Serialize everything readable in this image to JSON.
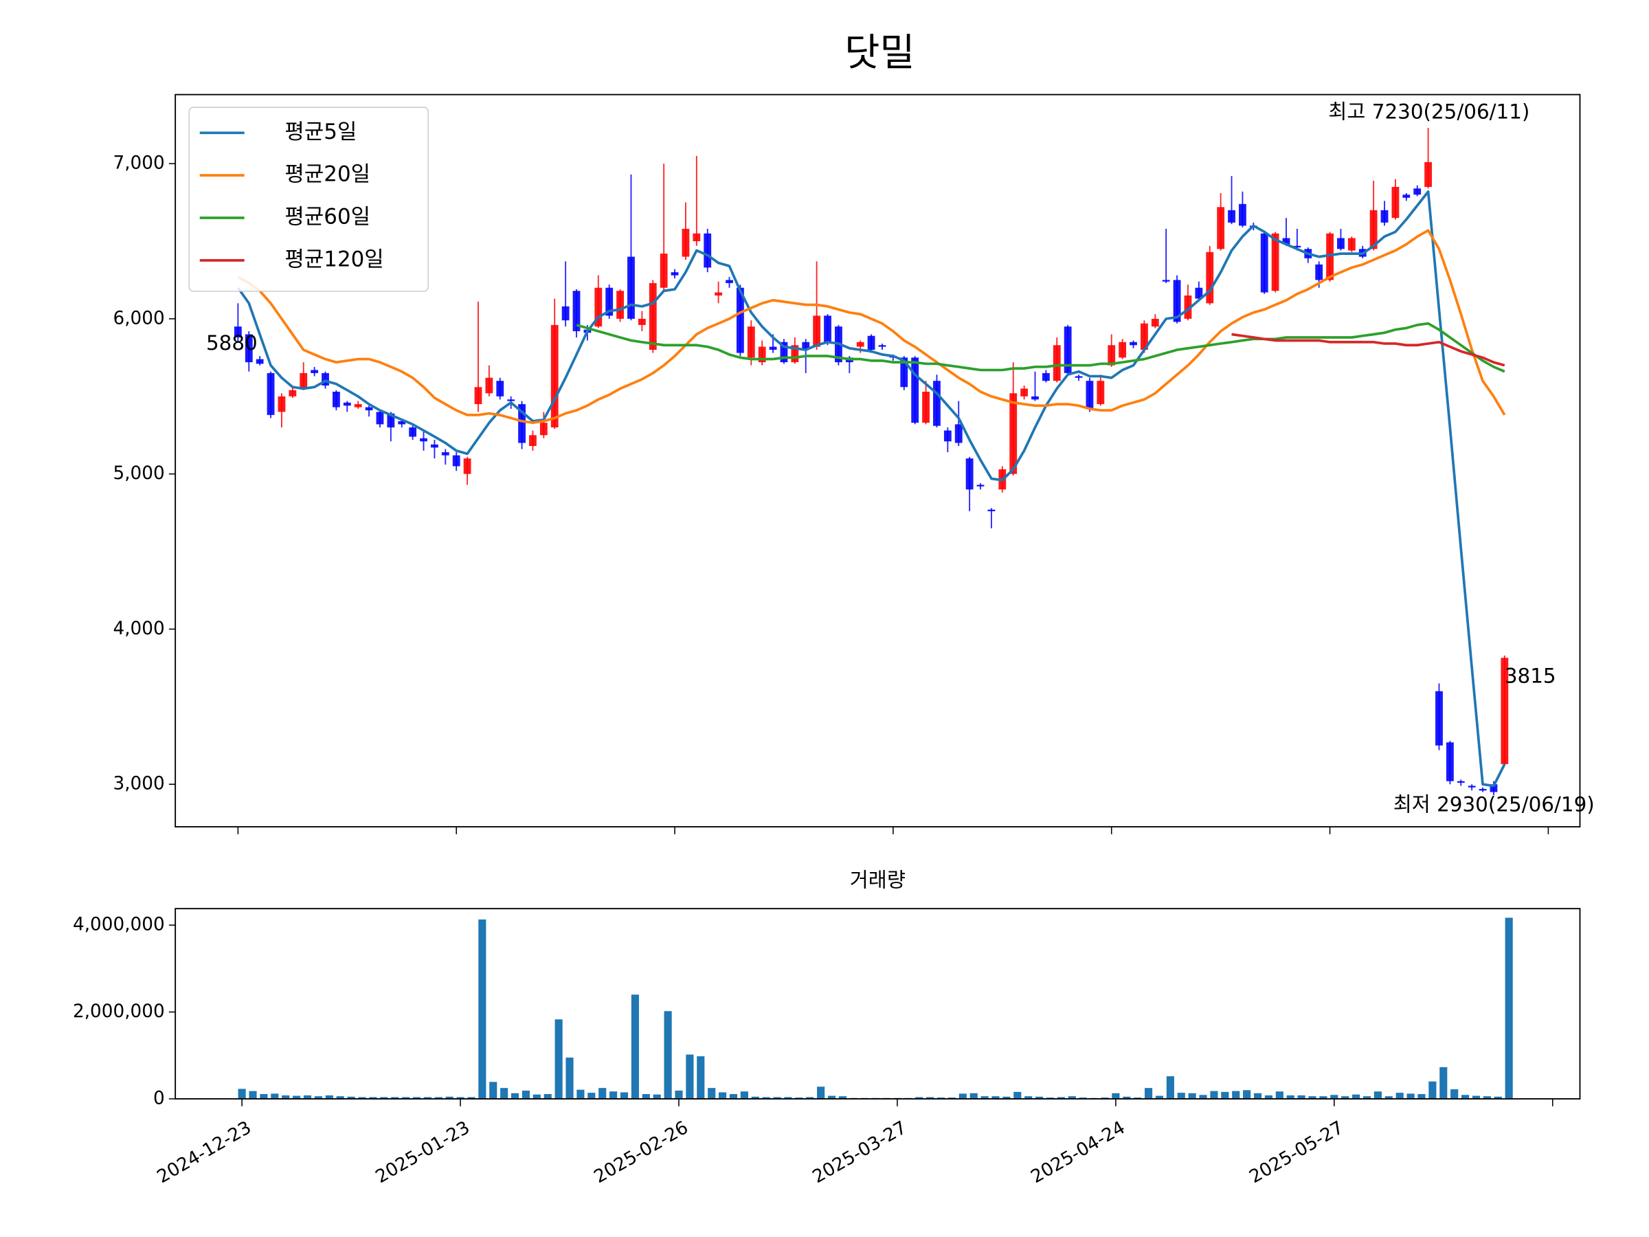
{
  "chart_data": [
    {
      "type": "candlestick",
      "title": "닷밀",
      "legend": "upper left",
      "up_color": "#ff0000",
      "down_color": "#0000ff",
      "xlim": [
        -5.74,
        122.9
      ],
      "xticks": [
        0,
        20,
        40,
        60,
        80,
        100,
        120
      ],
      "ylim": [
        2726,
        7445
      ],
      "yticks": [
        {
          "value": 3000,
          "label": "3,000"
        },
        {
          "value": 4000,
          "label": "4,000"
        },
        {
          "value": 5000,
          "label": "5,000"
        },
        {
          "value": 6000,
          "label": "6,000"
        },
        {
          "value": 7000,
          "label": "7,000"
        }
      ],
      "annotations": [
        {
          "text": "최고 7230(25/06/11)",
          "color": "#ff0000"
        },
        {
          "text": "최저 2930(25/06/19)",
          "color": "#0000ff"
        }
      ],
      "open": [
        5950,
        5900,
        5740,
        5650,
        5400,
        5500,
        5550,
        5670,
        5650,
        5530,
        5460,
        5430,
        5430,
        5400,
        5390,
        5340,
        5300,
        5230,
        5190,
        5140,
        5120,
        5000,
        5450,
        5520,
        5600,
        5480,
        5450,
        5180,
        5250,
        5300,
        6080,
        6180,
        5930,
        5950,
        6200,
        6000,
        6400,
        5960,
        5800,
        6200,
        6300,
        6400,
        6500,
        6550,
        6150,
        6250,
        6200,
        5750,
        5720,
        5820,
        5850,
        5720,
        5850,
        5820,
        6020,
        5950,
        5750,
        5820,
        5890,
        5830,
        5760,
        5750,
        5750,
        5330,
        5600,
        5280,
        5320,
        5100,
        4930,
        4770,
        4900,
        5000,
        5500,
        5500,
        5650,
        5600,
        5950,
        5630,
        5600,
        5450,
        5700,
        5750,
        5850,
        5800,
        5950,
        6250,
        6250,
        6000,
        6200,
        6100,
        6450,
        6700,
        6740,
        6600,
        6550,
        6180,
        6520,
        6470,
        6450,
        6350,
        6250,
        6520,
        6440,
        6450,
        6450,
        6700,
        6650,
        6800,
        6840,
        6850,
        3600,
        3270,
        3020,
        2990,
        2970,
        3000,
        3130
      ],
      "high": [
        6100,
        5920,
        5760,
        5660,
        5520,
        5560,
        5720,
        5690,
        5660,
        5540,
        5470,
        5470,
        5440,
        5410,
        5400,
        5350,
        5310,
        5280,
        5220,
        5160,
        5140,
        5110,
        6110,
        5700,
        5620,
        5500,
        5470,
        5280,
        5400,
        6130,
        6370,
        6190,
        5960,
        6280,
        6220,
        6190,
        6930,
        6050,
        6250,
        7000,
        6320,
        6750,
        7050,
        6580,
        6240,
        6270,
        6220,
        5990,
        5860,
        5900,
        5870,
        5880,
        5870,
        6370,
        6030,
        5960,
        5760,
        5860,
        5900,
        5840,
        5770,
        5760,
        5760,
        5600,
        5640,
        5300,
        5470,
        5110,
        4940,
        4780,
        5050,
        5720,
        5570,
        5660,
        5670,
        5880,
        5960,
        5640,
        5620,
        5640,
        5900,
        5870,
        5860,
        5990,
        6030,
        6580,
        6280,
        6220,
        6240,
        6470,
        6810,
        6920,
        6820,
        6620,
        6560,
        6560,
        6650,
        6580,
        6460,
        6370,
        6560,
        6580,
        6530,
        6470,
        6890,
        6760,
        6900,
        6810,
        6860,
        7230,
        3650,
        3280,
        3030,
        3000,
        2980,
        3020,
        3830
      ],
      "low": [
        5850,
        5660,
        5700,
        5360,
        5300,
        5490,
        5540,
        5630,
        5550,
        5410,
        5400,
        5420,
        5370,
        5300,
        5210,
        5300,
        5220,
        5150,
        5100,
        5060,
        5020,
        4930,
        5400,
        5500,
        5480,
        5420,
        5160,
        5150,
        5230,
        5290,
        5950,
        5880,
        5860,
        5940,
        6000,
        5980,
        5990,
        5920,
        5780,
        6180,
        6260,
        6380,
        6470,
        6300,
        6100,
        6200,
        5760,
        5700,
        5700,
        5780,
        5710,
        5710,
        5650,
        5800,
        5830,
        5700,
        5650,
        5780,
        5780,
        5800,
        5730,
        5540,
        5320,
        5320,
        5300,
        5140,
        5180,
        4760,
        4900,
        4650,
        4880,
        4990,
        5480,
        5470,
        5590,
        5590,
        5640,
        5600,
        5400,
        5440,
        5690,
        5740,
        5810,
        5780,
        5940,
        6230,
        5970,
        5990,
        6120,
        6090,
        6440,
        6610,
        6590,
        6570,
        6160,
        6170,
        6470,
        6440,
        6360,
        6200,
        6240,
        6440,
        6430,
        6390,
        6440,
        6600,
        6640,
        6760,
        6790,
        6840,
        3220,
        3000,
        2990,
        2960,
        2950,
        2930,
        3120
      ],
      "close": [
        5880,
        5720,
        5710,
        5380,
        5500,
        5540,
        5650,
        5650,
        5570,
        5430,
        5440,
        5450,
        5410,
        5320,
        5300,
        5320,
        5240,
        5210,
        5170,
        5120,
        5050,
        5100,
        5560,
        5620,
        5500,
        5470,
        5200,
        5250,
        5330,
        5960,
        5990,
        5920,
        5910,
        6200,
        6020,
        6180,
        6000,
        6000,
        6230,
        6420,
        6280,
        6580,
        6550,
        6330,
        6170,
        6230,
        5780,
        5950,
        5820,
        5800,
        5720,
        5830,
        5800,
        6020,
        5850,
        5720,
        5720,
        5850,
        5800,
        5820,
        5750,
        5560,
        5330,
        5530,
        5310,
        5210,
        5200,
        4900,
        4920,
        4760,
        5030,
        5520,
        5550,
        5480,
        5600,
        5830,
        5650,
        5620,
        5420,
        5600,
        5830,
        5850,
        5830,
        5970,
        6000,
        6240,
        5980,
        6150,
        6130,
        6430,
        6720,
        6620,
        6600,
        6590,
        6170,
        6550,
        6480,
        6460,
        6390,
        6250,
        6550,
        6450,
        6520,
        6400,
        6700,
        6620,
        6850,
        6780,
        6800,
        7010,
        3250,
        3020,
        3010,
        2980,
        2960,
        2950,
        3815
      ],
      "series": [
        {
          "name": "평균5일",
          "color": "#1f77b4",
          "values": [
            6200,
            6100,
            5900,
            5700,
            5620,
            5560,
            5550,
            5560,
            5600,
            5580,
            5540,
            5500,
            5450,
            5410,
            5380,
            5350,
            5320,
            5280,
            5240,
            5200,
            5150,
            5130,
            5230,
            5330,
            5410,
            5460,
            5400,
            5340,
            5350,
            5480,
            5620,
            5770,
            5920,
            6010,
            6050,
            6060,
            6090,
            6080,
            6100,
            6180,
            6190,
            6300,
            6440,
            6410,
            6360,
            6340,
            6180,
            6040,
            5950,
            5880,
            5820,
            5810,
            5800,
            5830,
            5850,
            5840,
            5810,
            5800,
            5790,
            5770,
            5760,
            5730,
            5640,
            5580,
            5520,
            5440,
            5360,
            5220,
            5090,
            4970,
            4960,
            5030,
            5150,
            5300,
            5440,
            5550,
            5640,
            5660,
            5630,
            5630,
            5620,
            5670,
            5700,
            5800,
            5900,
            6000,
            6010,
            6060,
            6120,
            6180,
            6300,
            6440,
            6530,
            6600,
            6560,
            6510,
            6480,
            6450,
            6420,
            6400,
            6410,
            6420,
            6420,
            6420,
            6470,
            6530,
            6560,
            6640,
            6730,
            6820,
            6060,
            5300,
            4520,
            3750,
            3000,
            2990,
            3130
          ]
        },
        {
          "name": "평균20일",
          "color": "#ff7f0e",
          "values": [
            6270,
            6230,
            6180,
            6100,
            6000,
            5900,
            5800,
            5770,
            5740,
            5720,
            5730,
            5740,
            5740,
            5720,
            5690,
            5660,
            5620,
            5560,
            5490,
            5450,
            5410,
            5380,
            5380,
            5390,
            5380,
            5360,
            5340,
            5330,
            5340,
            5360,
            5390,
            5410,
            5440,
            5480,
            5510,
            5550,
            5580,
            5610,
            5650,
            5700,
            5760,
            5830,
            5900,
            5940,
            5970,
            6000,
            6040,
            6070,
            6100,
            6120,
            6110,
            6100,
            6090,
            6090,
            6080,
            6060,
            6040,
            6030,
            6000,
            5970,
            5920,
            5860,
            5820,
            5770,
            5720,
            5670,
            5620,
            5580,
            5530,
            5500,
            5480,
            5460,
            5450,
            5440,
            5440,
            5450,
            5450,
            5440,
            5420,
            5410,
            5410,
            5440,
            5460,
            5480,
            5520,
            5580,
            5640,
            5700,
            5770,
            5850,
            5920,
            5970,
            6010,
            6040,
            6060,
            6090,
            6120,
            6160,
            6190,
            6230,
            6270,
            6300,
            6330,
            6350,
            6380,
            6410,
            6440,
            6480,
            6530,
            6570,
            6450,
            6250,
            6030,
            5800,
            5600,
            5500,
            5380
          ]
        },
        {
          "name": "평균60일",
          "color": "#2ca02c",
          "values": [
            null,
            null,
            null,
            null,
            null,
            null,
            null,
            null,
            null,
            null,
            null,
            null,
            null,
            null,
            null,
            null,
            null,
            null,
            null,
            null,
            null,
            null,
            null,
            null,
            null,
            null,
            null,
            null,
            null,
            null,
            null,
            5960,
            5940,
            5920,
            5900,
            5880,
            5860,
            5850,
            5840,
            5830,
            5830,
            5830,
            5830,
            5820,
            5800,
            5770,
            5750,
            5740,
            5740,
            5740,
            5750,
            5750,
            5760,
            5760,
            5760,
            5750,
            5740,
            5740,
            5730,
            5730,
            5720,
            5720,
            5720,
            5710,
            5710,
            5700,
            5690,
            5680,
            5670,
            5670,
            5670,
            5680,
            5680,
            5690,
            5690,
            5700,
            5700,
            5700,
            5700,
            5710,
            5710,
            5720,
            5730,
            5740,
            5760,
            5780,
            5800,
            5810,
            5820,
            5830,
            5840,
            5850,
            5860,
            5870,
            5870,
            5870,
            5880,
            5880,
            5880,
            5880,
            5880,
            5880,
            5880,
            5890,
            5900,
            5910,
            5930,
            5940,
            5960,
            5970,
            5930,
            5880,
            5830,
            5780,
            5730,
            5690,
            5660
          ]
        },
        {
          "name": "평균120일",
          "color": "#d62728",
          "values": [
            null,
            null,
            null,
            null,
            null,
            null,
            null,
            null,
            null,
            null,
            null,
            null,
            null,
            null,
            null,
            null,
            null,
            null,
            null,
            null,
            null,
            null,
            null,
            null,
            null,
            null,
            null,
            null,
            null,
            null,
            null,
            null,
            null,
            null,
            null,
            null,
            null,
            null,
            null,
            null,
            null,
            null,
            null,
            null,
            null,
            null,
            null,
            null,
            null,
            null,
            null,
            null,
            null,
            null,
            null,
            null,
            null,
            null,
            null,
            null,
            null,
            null,
            null,
            null,
            null,
            null,
            null,
            null,
            null,
            null,
            null,
            null,
            null,
            null,
            null,
            null,
            null,
            null,
            null,
            null,
            null,
            null,
            null,
            null,
            null,
            null,
            null,
            null,
            null,
            null,
            null,
            5900,
            5890,
            5880,
            5870,
            5860,
            5860,
            5860,
            5860,
            5860,
            5850,
            5850,
            5850,
            5850,
            5850,
            5840,
            5840,
            5830,
            5830,
            5840,
            5850,
            5820,
            5790,
            5770,
            5750,
            5720,
            5700
          ]
        }
      ]
    },
    {
      "type": "bar",
      "title": "거래량",
      "color": "#1f77b4",
      "xlim": [
        -6.1,
        122.5
      ],
      "xticks": [
        0,
        20,
        40,
        60,
        80,
        100,
        120
      ],
      "xtick_labels": [
        "2024-12-23",
        "2025-01-23",
        "2025-02-26",
        "2025-03-27",
        "2025-04-24",
        "2025-05-27"
      ],
      "ylim": [
        0,
        4380000
      ],
      "yticks": [
        0,
        {
          "value": 2000000,
          "label": "2,000,000"
        },
        {
          "value": 4000000,
          "label": "4,000,000"
        }
      ],
      "values": [
        230000,
        180000,
        110000,
        120000,
        80000,
        70000,
        80000,
        60000,
        80000,
        60000,
        50000,
        40000,
        40000,
        40000,
        40000,
        40000,
        40000,
        40000,
        40000,
        50000,
        40000,
        40000,
        4130000,
        390000,
        250000,
        130000,
        190000,
        100000,
        110000,
        1830000,
        950000,
        210000,
        140000,
        250000,
        170000,
        150000,
        2400000,
        110000,
        100000,
        2020000,
        190000,
        1020000,
        980000,
        250000,
        150000,
        110000,
        170000,
        50000,
        40000,
        40000,
        40000,
        30000,
        40000,
        280000,
        70000,
        60000,
        20000,
        20000,
        20000,
        20000,
        20000,
        20000,
        40000,
        40000,
        30000,
        30000,
        120000,
        130000,
        60000,
        60000,
        50000,
        160000,
        60000,
        50000,
        30000,
        40000,
        60000,
        30000,
        20000,
        30000,
        130000,
        50000,
        30000,
        250000,
        70000,
        520000,
        140000,
        130000,
        90000,
        180000,
        160000,
        180000,
        200000,
        130000,
        80000,
        170000,
        80000,
        80000,
        60000,
        60000,
        90000,
        60000,
        100000,
        60000,
        170000,
        60000,
        140000,
        120000,
        110000,
        400000,
        730000,
        220000,
        90000,
        70000,
        60000,
        50000,
        4170000
      ]
    }
  ]
}
